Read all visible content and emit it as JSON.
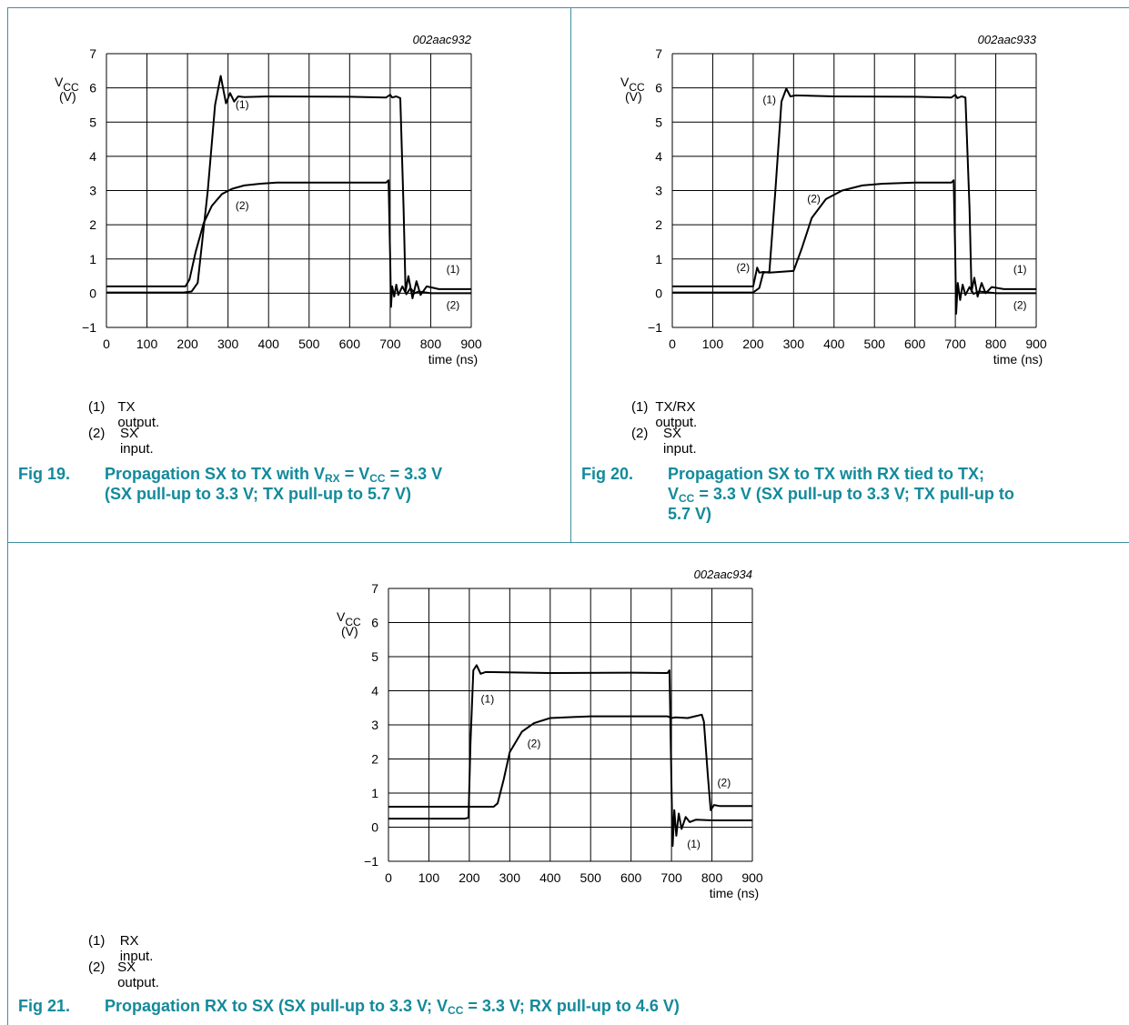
{
  "chart_data": [
    {
      "id": "fig19",
      "type": "line",
      "code": "002aac932",
      "ylabel_main": "V",
      "ylabel_sub": "CC",
      "yunit": "(V)",
      "xlabel": "time (ns)",
      "xlim": [
        0,
        900
      ],
      "ylim": [
        -1,
        7
      ],
      "xticks": [
        "0",
        "100",
        "200",
        "300",
        "400",
        "500",
        "600",
        "700",
        "800",
        "900"
      ],
      "yticks": [
        "7",
        "6",
        "5",
        "4",
        "3",
        "2",
        "1",
        "0",
        "−1"
      ],
      "grid": true,
      "series": [
        {
          "name": "(1)",
          "x": [
            0,
            190,
            210,
            225,
            250,
            268,
            282,
            295,
            305,
            315,
            325,
            340,
            400,
            600,
            690,
            700,
            705,
            715,
            725,
            733,
            738,
            745,
            755,
            765,
            775,
            790,
            820,
            900
          ],
          "y": [
            0.02,
            0.02,
            0.05,
            0.3,
            3.0,
            5.5,
            6.35,
            5.55,
            5.85,
            5.6,
            5.75,
            5.73,
            5.75,
            5.74,
            5.72,
            5.8,
            5.72,
            5.75,
            5.7,
            2.5,
            0.05,
            0.5,
            -0.15,
            0.35,
            -0.05,
            0.2,
            0.12,
            0.12
          ]
        },
        {
          "name": "(2)",
          "x": [
            0,
            195,
            205,
            220,
            240,
            260,
            285,
            310,
            340,
            380,
            420,
            500,
            600,
            690,
            696,
            700,
            702,
            705,
            710,
            715,
            720,
            730,
            740,
            750,
            760,
            770,
            800,
            900
          ],
          "y": [
            0.2,
            0.2,
            0.4,
            1.2,
            2.05,
            2.55,
            2.9,
            3.05,
            3.15,
            3.2,
            3.23,
            3.23,
            3.23,
            3.23,
            3.3,
            1.0,
            -0.4,
            0.2,
            -0.1,
            0.25,
            -0.05,
            0.2,
            -0.03,
            0.15,
            0.0,
            0.05,
            0.0,
            0.0
          ]
        }
      ],
      "series_labels": [
        {
          "text": "(1)",
          "x": 335,
          "y": 5.4
        },
        {
          "text": "(2)",
          "x": 335,
          "y": 2.45
        },
        {
          "text": "(1)",
          "x": 855,
          "y": 0.6
        },
        {
          "text": "(2)",
          "x": 855,
          "y": -0.45
        }
      ],
      "legend": [
        {
          "num": "(1)",
          "text": "TX output."
        },
        {
          "num": "(2)",
          "text": "SX input."
        }
      ]
    },
    {
      "id": "fig20",
      "type": "line",
      "code": "002aac933",
      "ylabel_main": "V",
      "ylabel_sub": "CC",
      "yunit": "(V)",
      "xlabel": "time (ns)",
      "xlim": [
        0,
        900
      ],
      "ylim": [
        -1,
        7
      ],
      "xticks": [
        "0",
        "100",
        "200",
        "300",
        "400",
        "500",
        "600",
        "700",
        "800",
        "900"
      ],
      "yticks": [
        "7",
        "6",
        "5",
        "4",
        "3",
        "2",
        "1",
        "0",
        "−1"
      ],
      "grid": true,
      "series": [
        {
          "name": "(1)",
          "x": [
            0,
            200,
            215,
            225,
            240,
            255,
            270,
            282,
            292,
            305,
            400,
            600,
            690,
            700,
            705,
            715,
            725,
            735,
            740,
            747,
            755,
            765,
            775,
            790,
            820,
            900
          ],
          "y": [
            0.02,
            0.02,
            0.15,
            0.6,
            0.62,
            3.0,
            5.6,
            5.98,
            5.75,
            5.78,
            5.75,
            5.74,
            5.72,
            5.8,
            5.7,
            5.75,
            5.72,
            2.5,
            0.05,
            0.45,
            -0.1,
            0.3,
            0.0,
            0.18,
            0.12,
            0.12
          ]
        },
        {
          "name": "(2)",
          "x": [
            0,
            200,
            210,
            215,
            225,
            240,
            300,
            320,
            345,
            380,
            420,
            470,
            520,
            600,
            690,
            696,
            700,
            702,
            706,
            712,
            718,
            725,
            735,
            745,
            760,
            800,
            900
          ],
          "y": [
            0.2,
            0.2,
            0.75,
            0.6,
            0.62,
            0.6,
            0.65,
            1.3,
            2.2,
            2.75,
            3.0,
            3.15,
            3.2,
            3.23,
            3.23,
            3.3,
            1.0,
            -0.6,
            0.3,
            -0.2,
            0.25,
            -0.05,
            0.18,
            -0.02,
            0.05,
            0.0,
            0.0
          ]
        }
      ],
      "series_labels": [
        {
          "text": "(1)",
          "x": 240,
          "y": 5.55
        },
        {
          "text": "(2)",
          "x": 350,
          "y": 2.65
        },
        {
          "text": "(2)",
          "x": 175,
          "y": 0.65
        },
        {
          "text": "(1)",
          "x": 860,
          "y": 0.6
        },
        {
          "text": "(2)",
          "x": 860,
          "y": -0.45
        }
      ],
      "legend": [
        {
          "num": "(1)",
          "text": "TX/RX output."
        },
        {
          "num": "(2)",
          "text": "SX input."
        }
      ]
    },
    {
      "id": "fig21",
      "type": "line",
      "code": "002aac934",
      "ylabel_main": "V",
      "ylabel_sub": "CC",
      "yunit": "(V)",
      "xlabel": "time (ns)",
      "xlim": [
        0,
        900
      ],
      "ylim": [
        -1,
        7
      ],
      "xticks": [
        "0",
        "100",
        "200",
        "300",
        "400",
        "500",
        "600",
        "700",
        "800",
        "900"
      ],
      "yticks": [
        "7",
        "6",
        "5",
        "4",
        "3",
        "2",
        "1",
        "0",
        "−1"
      ],
      "grid": true,
      "series": [
        {
          "name": "(1)",
          "x": [
            0,
            190,
            198,
            203,
            210,
            218,
            228,
            240,
            400,
            600,
            690,
            695,
            700,
            703,
            707,
            712,
            718,
            725,
            735,
            745,
            760,
            800,
            900
          ],
          "y": [
            0.25,
            0.25,
            0.28,
            2.5,
            4.6,
            4.75,
            4.5,
            4.55,
            4.52,
            4.53,
            4.52,
            4.6,
            1.2,
            -0.55,
            0.5,
            -0.25,
            0.4,
            -0.05,
            0.3,
            0.15,
            0.22,
            0.2,
            0.2
          ]
        },
        {
          "name": "(2)",
          "x": [
            0,
            200,
            260,
            270,
            285,
            300,
            330,
            360,
            400,
            500,
            600,
            690,
            700,
            710,
            740,
            775,
            780,
            790,
            797,
            805,
            820,
            900
          ],
          "y": [
            0.6,
            0.6,
            0.6,
            0.7,
            1.4,
            2.2,
            2.8,
            3.05,
            3.2,
            3.25,
            3.25,
            3.25,
            3.2,
            3.22,
            3.2,
            3.3,
            3.1,
            1.5,
            0.5,
            0.65,
            0.62,
            0.62
          ]
        }
      ],
      "series_labels": [
        {
          "text": "(1)",
          "x": 245,
          "y": 3.65
        },
        {
          "text": "(2)",
          "x": 360,
          "y": 2.35
        },
        {
          "text": "(2)",
          "x": 830,
          "y": 1.2
        },
        {
          "text": "(1)",
          "x": 755,
          "y": -0.6
        }
      ],
      "legend": [
        {
          "num": "(1)",
          "text": "RX input."
        },
        {
          "num": "(2)",
          "text": "SX output."
        }
      ]
    }
  ],
  "captions": {
    "fig19": {
      "num": "Fig 19.",
      "l1_a": "Propagation SX to TX with V",
      "l1_s1": "RX",
      "l1_b": " = V",
      "l1_s2": "CC",
      "l1_c": " = 3.3 V",
      "l2": "(SX pull-up to 3.3 V; TX pull-up to 5.7 V)"
    },
    "fig20": {
      "num": "Fig 20.",
      "l1": "Propagation SX to TX with RX tied to TX;",
      "l2_a": "V",
      "l2_s": "CC",
      "l2_b": " = 3.3 V (SX pull-up to 3.3 V; TX pull-up to",
      "l3": "5.7 V)"
    },
    "fig21": {
      "num": "Fig 21.",
      "a": "Propagation RX to SX (SX pull-up to 3.3 V; V",
      "s": "CC",
      "b": " = 3.3 V; RX pull-up to 4.6 V)"
    }
  }
}
